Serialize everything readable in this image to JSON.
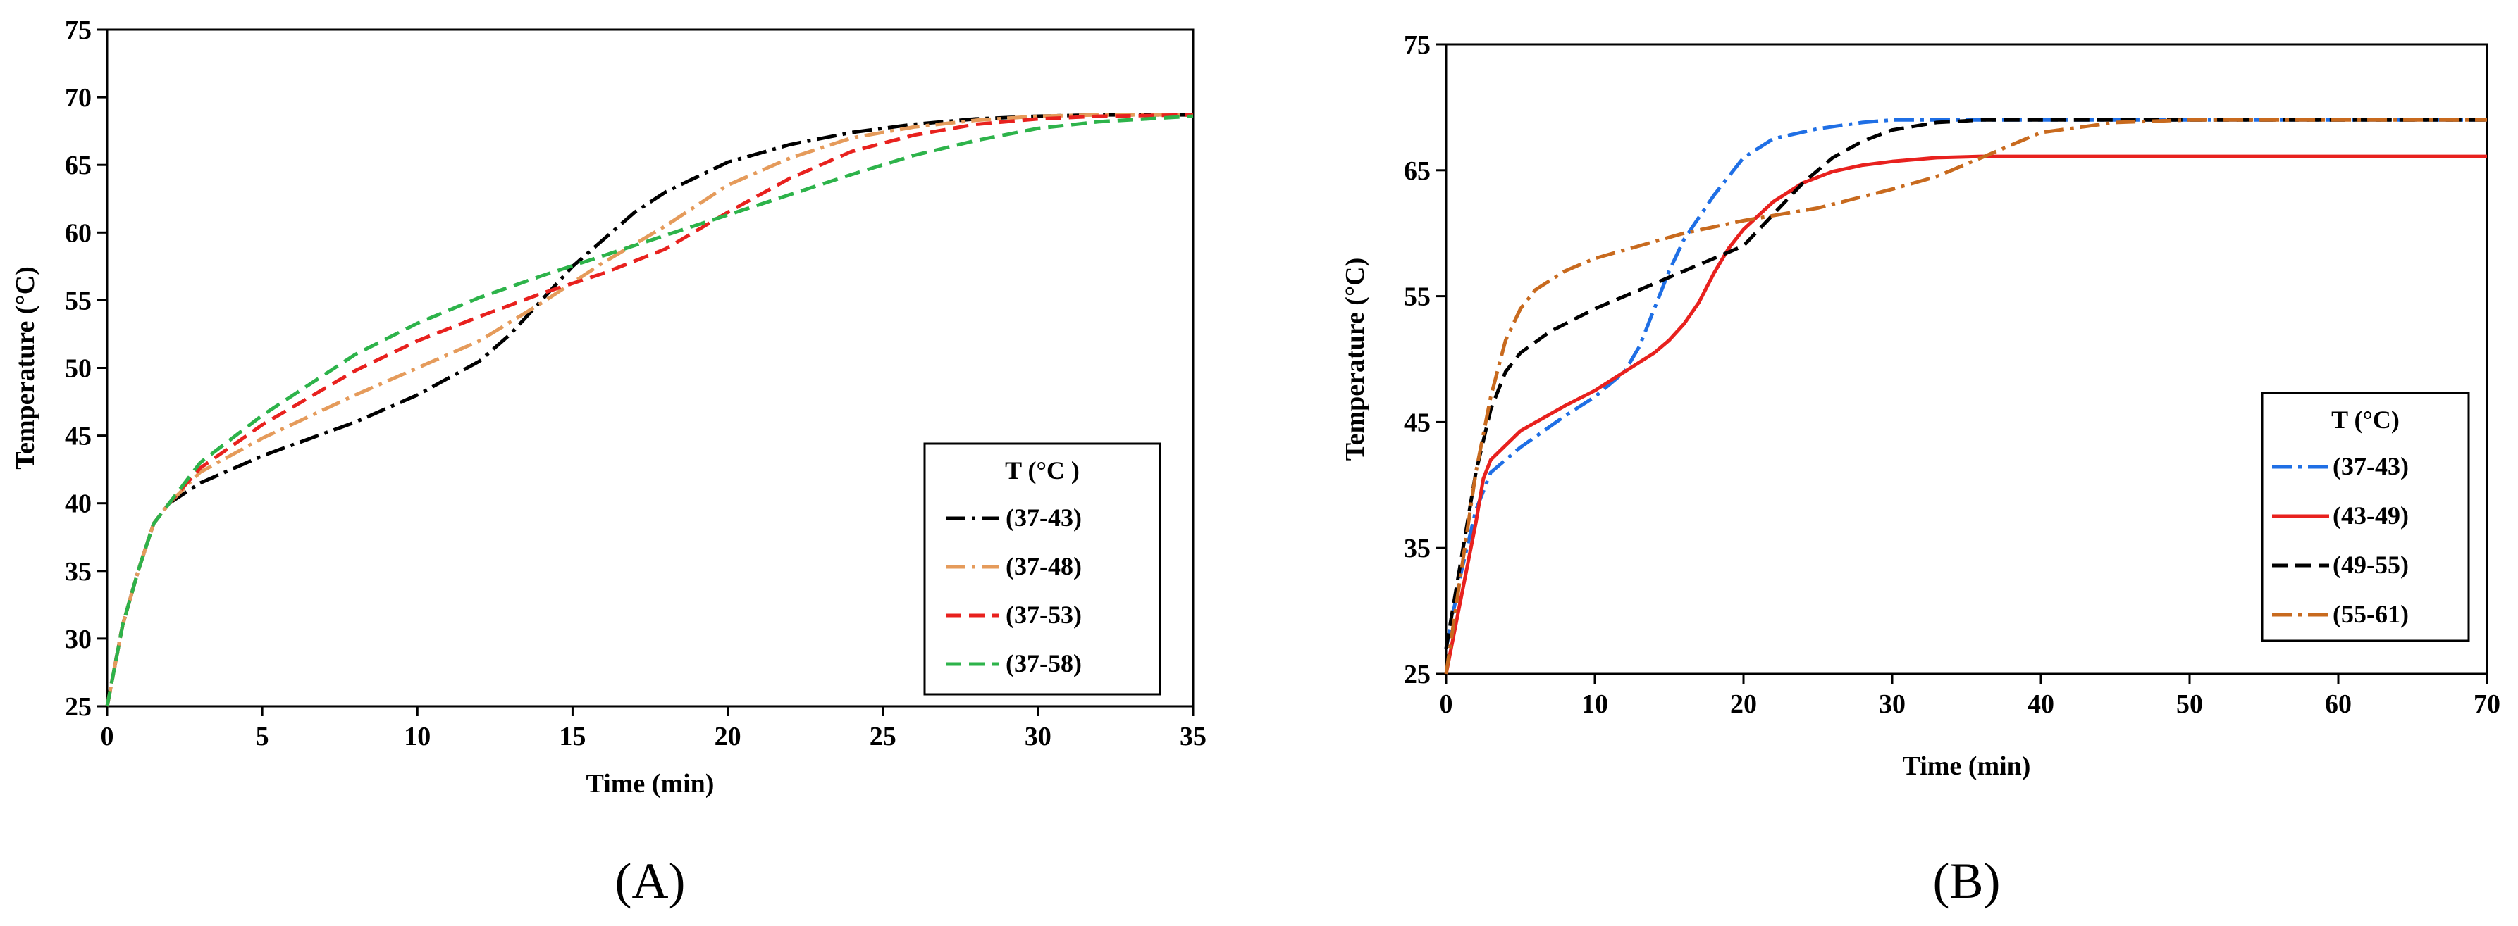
{
  "chart_data": [
    {
      "type": "line",
      "panel_label": "(A)",
      "xlabel": "Time (min)",
      "ylabel": "Temperature (°C)",
      "xlim": [
        0,
        35
      ],
      "ylim": [
        25,
        75
      ],
      "xticks": [
        0,
        5,
        10,
        15,
        20,
        25,
        30,
        35
      ],
      "yticks": [
        25,
        30,
        35,
        40,
        45,
        50,
        55,
        60,
        65,
        70,
        75
      ],
      "grid": false,
      "legend": {
        "title": "T (°C )",
        "position": "right"
      },
      "series": [
        {
          "name": "(37-43)",
          "color": "#000000",
          "dash": "dash-dot",
          "x": [
            0,
            0.5,
            1,
            1.5,
            2,
            3,
            5,
            8,
            10,
            12,
            13,
            14,
            15,
            16,
            17,
            18,
            20,
            22,
            24,
            26,
            28,
            30,
            32,
            35
          ],
          "y": [
            25,
            31,
            35,
            38.5,
            40,
            41.5,
            43.5,
            46,
            48,
            50.5,
            52.5,
            55,
            57.5,
            59.5,
            61.5,
            63,
            65.2,
            66.5,
            67.4,
            68,
            68.4,
            68.6,
            68.7,
            68.7
          ]
        },
        {
          "name": "(37-48)",
          "color": "#E59B5B",
          "dash": "dash-dot",
          "x": [
            0,
            0.5,
            1,
            1.5,
            2,
            3,
            5,
            8,
            10,
            12,
            14,
            16,
            18,
            20,
            22,
            24,
            26,
            28,
            30,
            32,
            35
          ],
          "y": [
            25,
            31,
            35,
            38.5,
            40,
            42.3,
            44.8,
            48,
            50,
            52,
            54.8,
            57.8,
            60.5,
            63.5,
            65.5,
            67,
            67.8,
            68.3,
            68.6,
            68.7,
            68.7
          ]
        },
        {
          "name": "(37-53)",
          "color": "#E8211E",
          "dash": "dash",
          "x": [
            0,
            0.5,
            1,
            1.5,
            2,
            3,
            5,
            8,
            10,
            12,
            14,
            16,
            18,
            20,
            22,
            24,
            26,
            28,
            30,
            32,
            35
          ],
          "y": [
            25,
            31,
            35,
            38.5,
            40,
            42.6,
            45.8,
            49.8,
            52,
            53.8,
            55.5,
            57,
            58.8,
            61.5,
            64,
            66,
            67.2,
            68,
            68.4,
            68.6,
            68.7
          ]
        },
        {
          "name": "(37-58)",
          "color": "#2DB34A",
          "dash": "dash",
          "x": [
            0,
            0.5,
            1,
            1.5,
            2,
            3,
            5,
            8,
            10,
            12,
            14,
            16,
            18,
            20,
            22,
            24,
            26,
            28,
            30,
            32,
            35
          ],
          "y": [
            25,
            31,
            35,
            38.5,
            40,
            43,
            46.5,
            51,
            53.3,
            55.2,
            56.8,
            58.3,
            59.8,
            61.3,
            62.8,
            64.3,
            65.7,
            66.8,
            67.7,
            68.2,
            68.6
          ]
        }
      ]
    },
    {
      "type": "line",
      "panel_label": "(B)",
      "xlabel": "Time (min)",
      "ylabel": "Temperature (°C)",
      "xlim": [
        0,
        70
      ],
      "ylim": [
        25,
        75
      ],
      "xticks": [
        0,
        10,
        20,
        30,
        40,
        50,
        60,
        70
      ],
      "yticks": [
        25,
        35,
        45,
        55,
        65,
        75
      ],
      "grid": false,
      "legend": {
        "title": "T (°C)",
        "position": "right"
      },
      "series": [
        {
          "name": "(37-43)",
          "color": "#1F6FE5",
          "dash": "dash-dot",
          "x": [
            0,
            1,
            2,
            3,
            5,
            8,
            10,
            12,
            13,
            14,
            15,
            16,
            18,
            20,
            22,
            25,
            28,
            30,
            33,
            40,
            50,
            60,
            70
          ],
          "y": [
            27,
            33,
            38,
            41,
            43,
            45.5,
            47,
            49,
            51,
            54,
            57,
            59.5,
            63,
            66,
            67.5,
            68.3,
            68.8,
            69,
            69,
            69,
            69,
            69,
            69
          ]
        },
        {
          "name": "(43-49)",
          "color": "#E8211E",
          "dash": "solid",
          "x": [
            0,
            1,
            2,
            2.5,
            3,
            5,
            8,
            10,
            12,
            14,
            15,
            16,
            17,
            18,
            19,
            20,
            22,
            24,
            26,
            28,
            30,
            33,
            36,
            40,
            50,
            60,
            70
          ],
          "y": [
            25,
            31,
            37,
            40.5,
            42,
            44.3,
            46.3,
            47.5,
            49,
            50.5,
            51.5,
            52.8,
            54.5,
            56.8,
            58.8,
            60.3,
            62.5,
            64,
            64.9,
            65.4,
            65.7,
            66,
            66.1,
            66.1,
            66.1,
            66.1,
            66.1
          ]
        },
        {
          "name": "(49-55)",
          "color": "#000000",
          "dash": "dash",
          "x": [
            0,
            1,
            2,
            3,
            4,
            5,
            7,
            10,
            13,
            16,
            18,
            20,
            22,
            24,
            26,
            28,
            30,
            33,
            36,
            40,
            50,
            60,
            70
          ],
          "y": [
            27,
            34,
            41,
            46,
            49,
            50.5,
            52.2,
            54,
            55.5,
            57,
            58,
            59,
            61.5,
            64,
            66,
            67.3,
            68.2,
            68.8,
            69,
            69,
            69,
            69,
            69
          ]
        },
        {
          "name": "(55-61)",
          "color": "#C86A1E",
          "dash": "dash-dot",
          "x": [
            0,
            1,
            2,
            3,
            4,
            5,
            6,
            8,
            10,
            13,
            16,
            20,
            25,
            30,
            33,
            36,
            40,
            45,
            50,
            60,
            70
          ],
          "y": [
            25,
            33,
            41,
            47,
            51.5,
            54,
            55.5,
            57,
            58,
            59,
            60,
            61,
            62,
            63.5,
            64.5,
            66,
            68,
            68.8,
            69,
            69,
            69
          ]
        }
      ]
    }
  ]
}
